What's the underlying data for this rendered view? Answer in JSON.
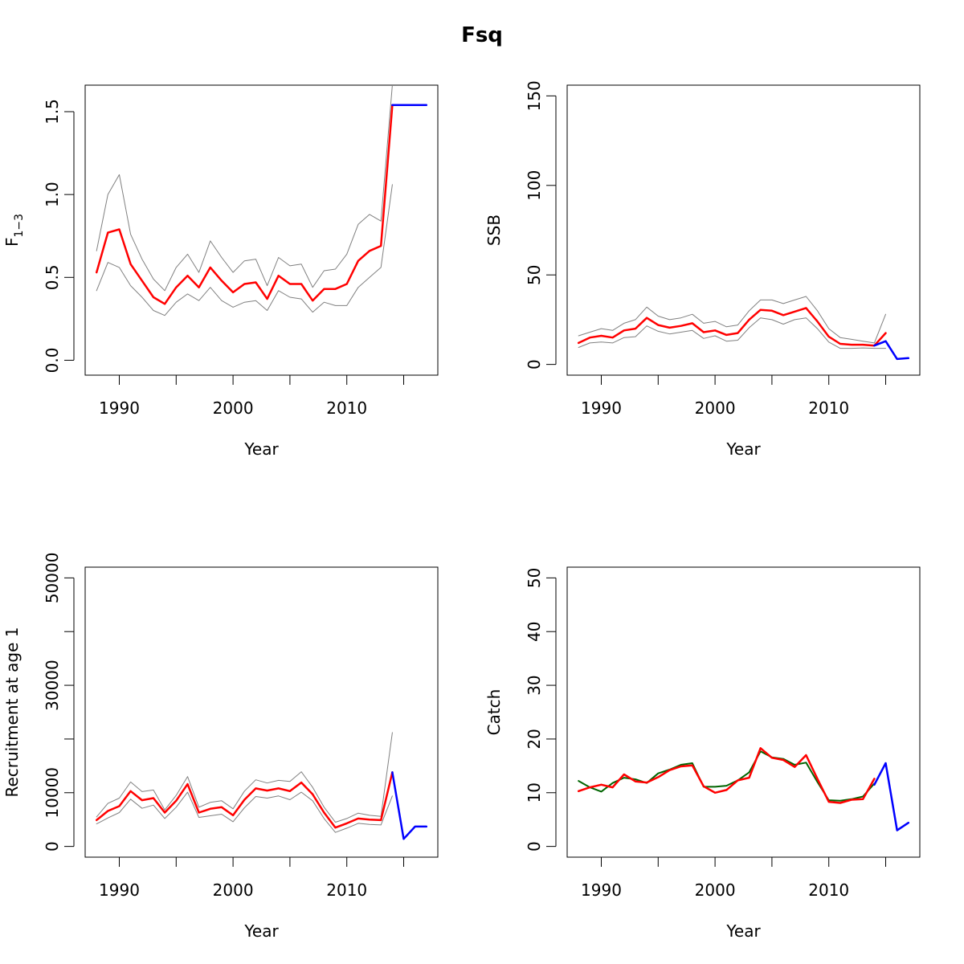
{
  "figure_title": "Fsq",
  "colors": {
    "estimate": "#ff0000",
    "interval": "#808080",
    "forecast": "#0000ff",
    "observed": "#006400"
  },
  "chart_data": [
    {
      "type": "line",
      "panel": "top-left",
      "xlabel": "Year",
      "ylabel": "F",
      "ylabel_sub": "1−3",
      "xlim": [
        1987,
        2018
      ],
      "ylim": [
        -0.09,
        1.66
      ],
      "xticks": [
        1990,
        2000,
        2010
      ],
      "yticks": [
        0.0,
        0.5,
        1.0,
        1.5
      ],
      "xtick_labels": [
        "1990",
        "2000",
        "2010"
      ],
      "ytick_labels": [
        "0.0",
        "0.5",
        "1.0",
        "1.5"
      ],
      "series": [
        {
          "role": "interval",
          "x": [
            1988,
            1989,
            1990,
            1991,
            1992,
            1993,
            1994,
            1995,
            1996,
            1997,
            1998,
            1999,
            2000,
            2001,
            2002,
            2003,
            2004,
            2005,
            2006,
            2007,
            2008,
            2009,
            2010,
            2011,
            2012,
            2013,
            2014
          ],
          "values": [
            0.66,
            1.0,
            1.12,
            0.76,
            0.61,
            0.49,
            0.42,
            0.56,
            0.64,
            0.53,
            0.72,
            0.62,
            0.53,
            0.6,
            0.61,
            0.45,
            0.62,
            0.57,
            0.58,
            0.44,
            0.54,
            0.55,
            0.64,
            0.82,
            0.88,
            0.84,
            1.66
          ]
        },
        {
          "role": "interval",
          "x": [
            1988,
            1989,
            1990,
            1991,
            1992,
            1993,
            1994,
            1995,
            1996,
            1997,
            1998,
            1999,
            2000,
            2001,
            2002,
            2003,
            2004,
            2005,
            2006,
            2007,
            2008,
            2009,
            2010,
            2011,
            2012,
            2013,
            2014
          ],
          "values": [
            0.42,
            0.59,
            0.56,
            0.45,
            0.38,
            0.3,
            0.27,
            0.35,
            0.4,
            0.36,
            0.44,
            0.36,
            0.32,
            0.35,
            0.36,
            0.3,
            0.42,
            0.38,
            0.37,
            0.29,
            0.35,
            0.33,
            0.33,
            0.44,
            0.5,
            0.56,
            1.06
          ]
        },
        {
          "role": "estimate",
          "x": [
            1988,
            1989,
            1990,
            1991,
            1992,
            1993,
            1994,
            1995,
            1996,
            1997,
            1998,
            1999,
            2000,
            2001,
            2002,
            2003,
            2004,
            2005,
            2006,
            2007,
            2008,
            2009,
            2010,
            2011,
            2012,
            2013,
            2014
          ],
          "values": [
            0.53,
            0.77,
            0.79,
            0.58,
            0.48,
            0.38,
            0.34,
            0.44,
            0.51,
            0.44,
            0.56,
            0.48,
            0.41,
            0.46,
            0.47,
            0.37,
            0.51,
            0.46,
            0.46,
            0.36,
            0.43,
            0.43,
            0.46,
            0.6,
            0.66,
            0.69,
            1.54
          ]
        },
        {
          "role": "forecast",
          "x": [
            2014,
            2015,
            2016,
            2017
          ],
          "values": [
            1.54,
            1.54,
            1.54,
            1.54
          ]
        }
      ]
    },
    {
      "type": "line",
      "panel": "top-right",
      "xlabel": "Year",
      "ylabel": "SSB",
      "xlim": [
        1987,
        2018
      ],
      "ylim": [
        -6,
        156
      ],
      "xticks": [
        1990,
        2000,
        2010
      ],
      "yticks": [
        0,
        50,
        100,
        150
      ],
      "xtick_labels": [
        "1990",
        "2000",
        "2010"
      ],
      "ytick_labels": [
        "0",
        "50",
        "100",
        "150"
      ],
      "series": [
        {
          "role": "interval",
          "x": [
            1988,
            1989,
            1990,
            1991,
            1992,
            1993,
            1994,
            1995,
            1996,
            1997,
            1998,
            1999,
            2000,
            2001,
            2002,
            2003,
            2004,
            2005,
            2006,
            2007,
            2008,
            2009,
            2010,
            2011,
            2012,
            2013,
            2014,
            2015
          ],
          "values": [
            16,
            18,
            20,
            19,
            23,
            25,
            32,
            27,
            25,
            26,
            28,
            23,
            24,
            21,
            22,
            30,
            36,
            36,
            34,
            36,
            38,
            30,
            20,
            15,
            14,
            13,
            12,
            28
          ]
        },
        {
          "role": "interval",
          "x": [
            1988,
            1989,
            1990,
            1991,
            1992,
            1993,
            1994,
            1995,
            1996,
            1997,
            1998,
            1999,
            2000,
            2001,
            2002,
            2003,
            2004,
            2005,
            2006,
            2007,
            2008,
            2009,
            2010,
            2011,
            2012,
            2013,
            2014,
            2015
          ],
          "values": [
            9.5,
            12,
            12.5,
            12,
            15,
            15.5,
            21.5,
            18.5,
            17,
            18,
            19,
            14.5,
            16,
            13,
            13.5,
            20.5,
            26,
            25,
            22.5,
            25,
            26,
            20,
            12.5,
            9,
            9,
            9.2,
            9,
            9
          ]
        },
        {
          "role": "estimate",
          "x": [
            1988,
            1989,
            1990,
            1991,
            1992,
            1993,
            1994,
            1995,
            1996,
            1997,
            1998,
            1999,
            2000,
            2001,
            2002,
            2003,
            2004,
            2005,
            2006,
            2007,
            2008,
            2009,
            2010,
            2011,
            2012,
            2013,
            2014,
            2015
          ],
          "values": [
            12,
            15,
            16,
            15,
            19,
            20,
            26,
            22,
            20.5,
            21.5,
            23,
            18,
            19,
            16.5,
            17.5,
            25,
            30.5,
            30,
            27.5,
            29.5,
            31.5,
            24,
            15.5,
            11.5,
            11,
            11,
            10.5,
            17.5
          ]
        },
        {
          "role": "forecast",
          "x": [
            2014,
            2015,
            2016,
            2017
          ],
          "values": [
            10.5,
            13,
            3,
            3.5
          ]
        }
      ]
    },
    {
      "type": "line",
      "panel": "bottom-left",
      "xlabel": "Year",
      "ylabel": "Recruitment at age 1",
      "xlim": [
        1987,
        2018
      ],
      "ylim": [
        -2000,
        52000
      ],
      "xticks": [
        1990,
        2000,
        2010
      ],
      "yticks": [
        0,
        10000,
        20000,
        30000,
        40000,
        50000
      ],
      "xtick_labels": [
        "1990",
        "2000",
        "2010"
      ],
      "ytick_labels": [
        "0",
        "10000",
        "",
        "30000",
        "",
        "50000"
      ],
      "series": [
        {
          "role": "interval",
          "x": [
            1988,
            1989,
            1990,
            1991,
            1992,
            1993,
            1994,
            1995,
            1996,
            1997,
            1998,
            1999,
            2000,
            2001,
            2002,
            2003,
            2004,
            2005,
            2006,
            2007,
            2008,
            2009,
            2010,
            2011,
            2012,
            2013,
            2014
          ],
          "values": [
            5500,
            8000,
            9000,
            12000,
            10200,
            10500,
            6800,
            9500,
            13000,
            7300,
            8200,
            8500,
            7000,
            10300,
            12400,
            11800,
            12300,
            12100,
            13900,
            11000,
            7300,
            4500,
            5200,
            6200,
            5800,
            5600,
            21200
          ]
        },
        {
          "role": "interval",
          "x": [
            1988,
            1989,
            1990,
            1991,
            1992,
            1993,
            1994,
            1995,
            1996,
            1997,
            1998,
            1999,
            2000,
            2001,
            2002,
            2003,
            2004,
            2005,
            2006,
            2007,
            2008,
            2009,
            2010,
            2011,
            2012,
            2013,
            2014
          ],
          "values": [
            4200,
            5300,
            6300,
            8800,
            7100,
            7700,
            5200,
            7300,
            10100,
            5400,
            5700,
            6000,
            4600,
            7200,
            9300,
            9000,
            9400,
            8700,
            10100,
            8500,
            5200,
            2600,
            3400,
            4300,
            4100,
            4000,
            9400
          ]
        },
        {
          "role": "estimate",
          "x": [
            1988,
            1989,
            1990,
            1991,
            1992,
            1993,
            1994,
            1995,
            1996,
            1997,
            1998,
            1999,
            2000,
            2001,
            2002,
            2003,
            2004,
            2005,
            2006,
            2007,
            2008,
            2009,
            2010,
            2011,
            2012,
            2013,
            2014
          ],
          "values": [
            4900,
            6600,
            7500,
            10300,
            8600,
            9000,
            6300,
            8500,
            11600,
            6300,
            7000,
            7300,
            5800,
            8700,
            10800,
            10400,
            10800,
            10300,
            11900,
            9700,
            6300,
            3500,
            4300,
            5200,
            5000,
            4900,
            13800
          ]
        },
        {
          "role": "forecast",
          "x": [
            2014,
            2015,
            2016,
            2017
          ],
          "values": [
            13800,
            1400,
            3700,
            3700
          ]
        }
      ]
    },
    {
      "type": "line",
      "panel": "bottom-right",
      "xlabel": "Year",
      "ylabel": "Catch",
      "xlim": [
        1987,
        2018
      ],
      "ylim": [
        -2,
        52
      ],
      "xticks": [
        1990,
        2000,
        2010
      ],
      "yticks": [
        0,
        10,
        20,
        30,
        40,
        50
      ],
      "xtick_labels": [
        "1990",
        "2000",
        "2010"
      ],
      "ytick_labels": [
        "0",
        "10",
        "20",
        "30",
        "40",
        "50"
      ],
      "series": [
        {
          "role": "observed",
          "x": [
            1988,
            1989,
            1990,
            1991,
            1992,
            1993,
            1994,
            1995,
            1996,
            1997,
            1998,
            1999,
            2000,
            2001,
            2002,
            2003,
            2004,
            2005,
            2006,
            2007,
            2008,
            2009,
            2010,
            2011,
            2012,
            2013,
            2014
          ],
          "values": [
            12.2,
            11,
            10.2,
            11.8,
            12.8,
            12.5,
            11.8,
            13.6,
            14.3,
            15.2,
            15.5,
            11.1,
            11.1,
            11.3,
            12.3,
            13.8,
            17.7,
            16.6,
            16.3,
            15.2,
            15.6,
            12,
            8.6,
            8.5,
            8.8,
            9.3,
            11.7
          ]
        },
        {
          "role": "estimate",
          "x": [
            1988,
            1989,
            1990,
            1991,
            1992,
            1993,
            1994,
            1995,
            1996,
            1997,
            1998,
            1999,
            2000,
            2001,
            2002,
            2003,
            2004,
            2005,
            2006,
            2007,
            2008,
            2009,
            2010,
            2011,
            2012,
            2013,
            2014
          ],
          "values": [
            10.3,
            11,
            11.5,
            11,
            13.4,
            12.1,
            11.9,
            12.9,
            14.2,
            14.9,
            15.1,
            11.2,
            10,
            10.5,
            12.3,
            12.8,
            18.3,
            16.5,
            16.1,
            14.8,
            17,
            12.6,
            8.3,
            8.1,
            8.7,
            8.8,
            12.6
          ]
        },
        {
          "role": "forecast",
          "x": [
            2014,
            2015,
            2016,
            2017
          ],
          "values": [
            11.5,
            15.5,
            3,
            4.4
          ]
        }
      ]
    }
  ]
}
